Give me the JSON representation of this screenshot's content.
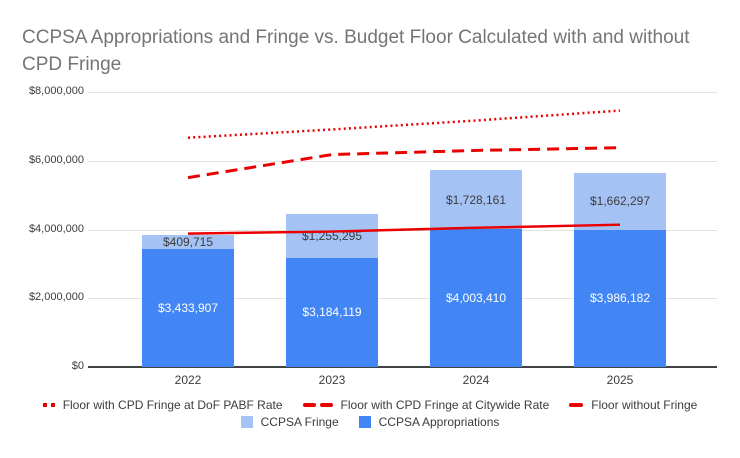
{
  "title": "CCPSA Appropriations and Fringe vs. Budget Floor Calculated with and without CPD Fringe",
  "colors": {
    "appropriations_blue": "#4285F4",
    "fringe_light_blue": "#A4C2F4",
    "floor_red": "#EA0000",
    "title_gray": "#757575",
    "gridline_gray": "#e3e3e3"
  },
  "chart_data": {
    "type": "combo (stacked bar + line)",
    "title": "CCPSA Appropriations and Fringe vs. Budget Floor Calculated with and without CPD Fringe",
    "categories": [
      "2022",
      "2023",
      "2024",
      "2025"
    ],
    "bar_series": [
      {
        "name": "CCPSA Appropriations",
        "color": "#4285F4",
        "label_color": "#ffffff",
        "values": [
          3433907,
          3184119,
          4003410,
          3986182
        ],
        "labels": [
          "$3,433,907",
          "$3,184,119",
          "$4,003,410",
          "$3,986,182"
        ]
      },
      {
        "name": "CCPSA Fringe",
        "color": "#A4C2F4",
        "label_color": "#3c3c3c",
        "values": [
          409715,
          1255295,
          1728161,
          1662297
        ],
        "labels": [
          "$409,715",
          "$1,255,295",
          "$1,728,161",
          "$1,662,297"
        ]
      }
    ],
    "line_series": [
      {
        "name": "Floor with CPD Fringe at DoF PABF Rate",
        "style": "dotted",
        "color": "#EA0000",
        "values_estimated": [
          6670000,
          6910000,
          7170000,
          7460000
        ]
      },
      {
        "name": "Floor with CPD Fringe at Citywide Rate",
        "style": "dashed",
        "color": "#EA0000",
        "values_estimated": [
          5510000,
          6180000,
          6300000,
          6380000
        ]
      },
      {
        "name": "Floor without Fringe",
        "style": "solid",
        "color": "#EA0000",
        "values_estimated": [
          3880000,
          3940000,
          4050000,
          4140000
        ]
      }
    ],
    "stacking": "CCPSA Appropriations on bottom, CCPSA Fringe on top",
    "ylim": [
      0,
      8000000
    ],
    "y_ticks": [
      {
        "value": 0,
        "label": "$0"
      },
      {
        "value": 2000000,
        "label": "$2,000,000"
      },
      {
        "value": 4000000,
        "label": "$4,000,000"
      },
      {
        "value": 6000000,
        "label": "$6,000,000"
      },
      {
        "value": 8000000,
        "label": "$8,000,000"
      }
    ],
    "grid": true,
    "legend_position": "bottom",
    "legend_rows": [
      [
        "Floor with CPD Fringe at DoF PABF Rate",
        "Floor with CPD Fringe at Citywide Rate",
        "Floor without Fringe"
      ],
      [
        "CCPSA Fringe",
        "CCPSA Appropriations"
      ]
    ]
  }
}
